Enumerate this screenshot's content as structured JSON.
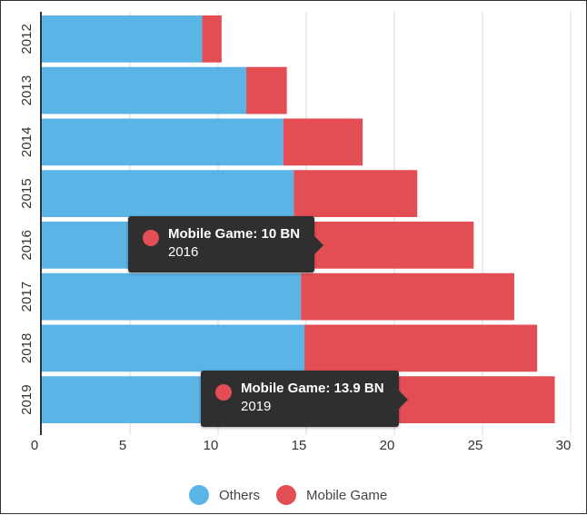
{
  "chart_data": {
    "type": "bar",
    "orientation": "horizontal",
    "stacked": true,
    "categories": [
      "2012",
      "2013",
      "2014",
      "2015",
      "2016",
      "2017",
      "2018",
      "2019"
    ],
    "series": [
      {
        "name": "Others",
        "color": "#5ab4e5",
        "values": [
          9.1,
          11.6,
          13.7,
          14.3,
          14.5,
          14.7,
          14.9,
          15.2
        ]
      },
      {
        "name": "Mobile Game",
        "color": "#e24e54",
        "values": [
          1.1,
          2.3,
          4.5,
          7.0,
          10.0,
          12.1,
          13.2,
          13.9
        ]
      }
    ],
    "xlim": [
      0,
      30
    ],
    "xticks": [
      "0",
      "5",
      "10",
      "15",
      "20",
      "25",
      "30"
    ],
    "grid": true,
    "legend_position": "bottom"
  },
  "legend": [
    {
      "label": "Others",
      "color": "#5ab4e5"
    },
    {
      "label": "Mobile Game",
      "color": "#e24e54"
    }
  ],
  "tooltips": [
    {
      "title": "Mobile Game: 10 BN",
      "subtitle": "2016",
      "color": "#e24e54"
    },
    {
      "title": "Mobile Game: 13.9 BN",
      "subtitle": "2019",
      "color": "#e24e54"
    }
  ]
}
